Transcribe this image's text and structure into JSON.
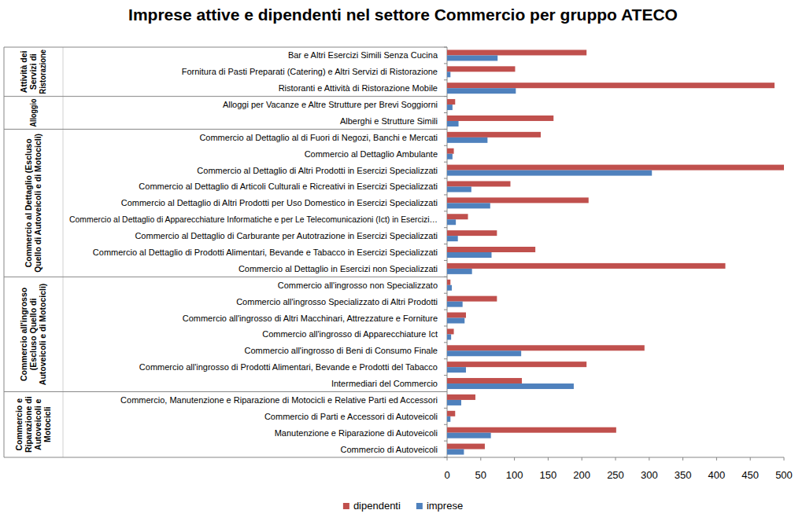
{
  "chart_data": {
    "type": "bar",
    "orientation": "horizontal",
    "title": "Imprese attive e dipendenti nel settore Commercio per gruppo ATECO",
    "categories": [
      "Bar e Altri Esercizi Simili Senza Cucina",
      "Fornitura di Pasti Preparati (Catering) e Altri Servizi di Ristorazione",
      "Ristoranti e Attività di Ristorazione Mobile",
      "Alloggi per Vacanze e Altre Strutture per Brevi Soggiorni",
      "Alberghi e Strutture Simili",
      "Commercio al Dettaglio al di Fuori di Negozi, Banchi e Mercati",
      "Commercio al Dettaglio Ambulante",
      "Commercio al Dettaglio di Altri Prodotti in Esercizi Specializzati",
      "Commercio al Dettaglio di Articoli Culturali e Ricreativi in Esercizi Specializzati",
      "Commercio al Dettaglio di Altri Prodotti per Uso Domestico in Esercizi Specializzati",
      "Commercio al Dettaglio di Apparecchiature Informatiche e per Le Telecomunicazioni (Ict) in Esercizi…",
      "Commercio al Dettaglio di Carburante per Autotrazione in Esercizi Specializzati",
      "Commercio al Dettaglio di Prodotti Alimentari, Bevande e Tabacco in Esercizi Specializzati",
      "Commercio al Dettaglio in Esercizi non Specializzati",
      "Commercio all'ingrosso non Specializzato",
      "Commercio all'ingrosso Specializzato di Altri Prodotti",
      "Commercio all'ingrosso di Altri Macchinari,  Attrezzature e Forniture",
      "Commercio all'ingrosso di Apparecchiature Ict",
      "Commercio all'ingrosso di Beni di Consumo Finale",
      "Commercio all'ingrosso di Prodotti Alimentari, Bevande e Prodotti del Tabacco",
      "Intermediari del Commercio",
      "Commercio, Manutenzione e Riparazione di Motocicli e Relative Parti ed Accessori",
      "Commercio di Parti e Accessori di Autoveicoli",
      "Manutenzione e Riparazione di Autoveicoli",
      "Commercio di Autoveicoli"
    ],
    "groups": [
      {
        "label": "Attività dei Servizi di Ristorazione",
        "size": 3
      },
      {
        "label": "Alloggio",
        "size": 2
      },
      {
        "label": "Commercio al Dettaglio (Escluso Quello di Autoveicoli e di Motocicli)",
        "size": 9
      },
      {
        "label": "Commercio all'ingrosso (Escluso Quello di Autoveicoli e di Motocicli)",
        "size": 7
      },
      {
        "label": "Commercio e Riparazione di Autoveicoli e Motocicli",
        "size": 4
      }
    ],
    "series": [
      {
        "name": "dipendenti",
        "color": "#c0504d",
        "values": [
          207,
          101,
          486,
          12,
          158,
          139,
          10,
          500,
          94,
          210,
          31,
          74,
          131,
          413,
          5,
          74,
          28,
          10,
          293,
          207,
          111,
          42,
          12,
          251,
          56
        ]
      },
      {
        "name": "imprese",
        "color": "#4f81bd",
        "values": [
          75,
          5,
          102,
          8,
          17,
          60,
          8,
          304,
          36,
          64,
          13,
          16,
          66,
          37,
          7,
          23,
          26,
          6,
          110,
          28,
          188,
          21,
          5,
          65,
          25
        ]
      }
    ],
    "xlim": [
      0,
      500
    ],
    "xticks": [
      0,
      50,
      100,
      150,
      200,
      250,
      300,
      350,
      400,
      450,
      500
    ],
    "grid": false,
    "legend": "bottom",
    "data_labels": false
  }
}
